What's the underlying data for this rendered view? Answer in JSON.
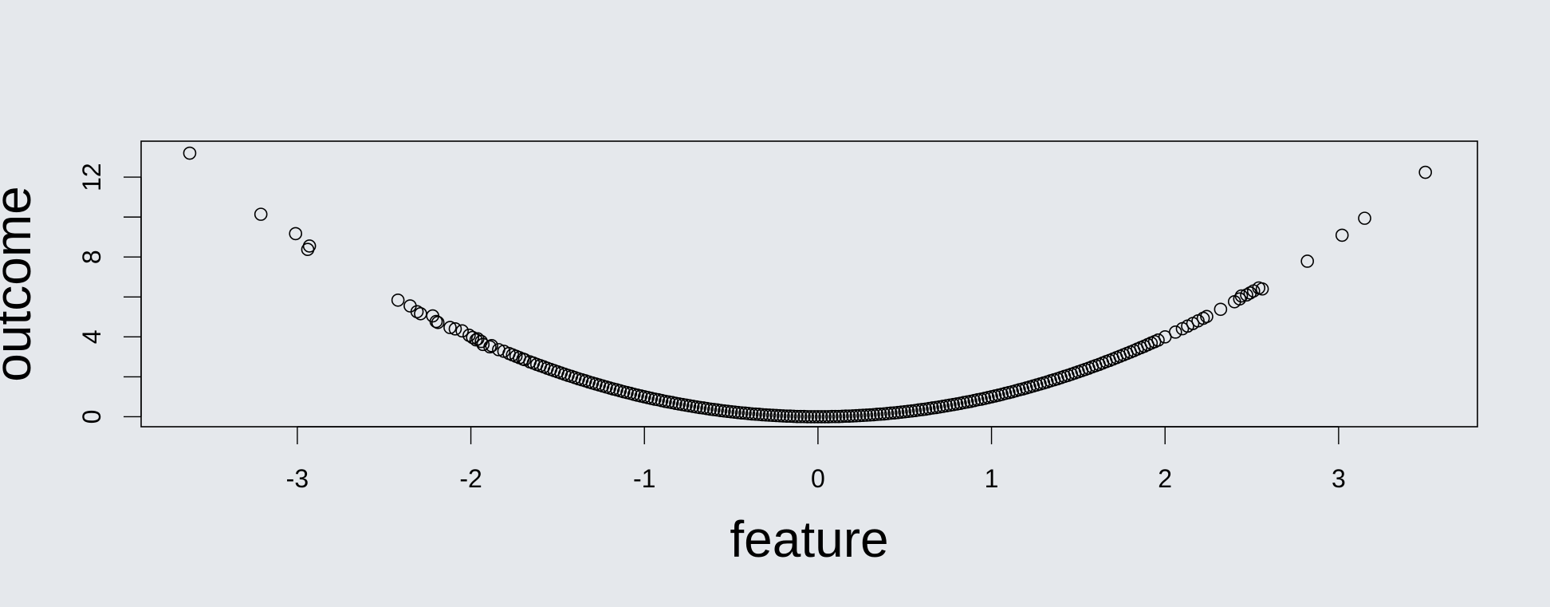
{
  "background_color": "#e5e8ec",
  "chart_data": {
    "type": "scatter",
    "title": "",
    "xlabel": "feature",
    "ylabel": "outcome",
    "xlim": [
      -3.9,
      3.8
    ],
    "ylim": [
      -0.5,
      13.8
    ],
    "x_ticks": [
      -3,
      -2,
      -1,
      0,
      1,
      2,
      3
    ],
    "x_tick_labels": [
      "-3",
      "-2",
      "-1",
      "0",
      "1",
      "2",
      "3"
    ],
    "y_ticks": [
      0,
      2,
      4,
      6,
      8,
      10,
      12
    ],
    "y_tick_labels": [
      "0",
      "",
      "4",
      "",
      "8",
      "",
      "12"
    ],
    "grid": false,
    "legend": "none",
    "marker": "open-circle",
    "marker_color": "#000000",
    "points": [
      [
        -3.62,
        13.2
      ],
      [
        -3.21,
        10.14
      ],
      [
        -3.01,
        9.17
      ],
      [
        -2.93,
        8.55
      ],
      [
        -2.94,
        8.38
      ],
      [
        -2.42,
        5.84
      ],
      [
        -2.35,
        5.55
      ],
      [
        -2.31,
        5.26
      ],
      [
        -2.29,
        5.16
      ],
      [
        -2.22,
        5.05
      ],
      [
        -2.2,
        4.77
      ],
      [
        -2.19,
        4.72
      ],
      [
        -2.12,
        4.47
      ],
      [
        -2.09,
        4.4
      ],
      [
        -2.05,
        4.3
      ],
      [
        -2.01,
        4.08
      ],
      [
        -1.99,
        3.97
      ],
      [
        -1.97,
        3.85
      ],
      [
        -1.96,
        3.9
      ],
      [
        -1.94,
        3.77
      ],
      [
        -1.93,
        3.62
      ],
      [
        -1.89,
        3.5
      ],
      [
        -1.88,
        3.56
      ],
      [
        -1.84,
        3.36
      ],
      [
        -1.81,
        3.28
      ],
      [
        -1.78,
        3.17
      ],
      [
        -1.76,
        3.1
      ],
      [
        -1.74,
        3.03
      ],
      [
        -1.72,
        2.96
      ],
      [
        -1.7,
        2.89
      ],
      [
        -1.69,
        2.86
      ],
      [
        -1.66,
        2.75
      ],
      [
        -1.64,
        2.69
      ],
      [
        -1.62,
        2.62
      ],
      [
        -1.6,
        2.56
      ],
      [
        -1.58,
        2.5
      ],
      [
        -1.56,
        2.43
      ],
      [
        -1.54,
        2.37
      ],
      [
        -1.52,
        2.31
      ],
      [
        -1.5,
        2.25
      ],
      [
        -1.48,
        2.19
      ],
      [
        -1.46,
        2.13
      ],
      [
        -1.44,
        2.07
      ],
      [
        -1.42,
        2.02
      ],
      [
        -1.4,
        1.96
      ],
      [
        -1.38,
        1.9
      ],
      [
        -1.36,
        1.85
      ],
      [
        -1.34,
        1.8
      ],
      [
        -1.32,
        1.74
      ],
      [
        -1.3,
        1.69
      ],
      [
        -1.28,
        1.64
      ],
      [
        -1.26,
        1.59
      ],
      [
        -1.24,
        1.54
      ],
      [
        -1.22,
        1.49
      ],
      [
        -1.2,
        1.44
      ],
      [
        -1.18,
        1.39
      ],
      [
        -1.16,
        1.35
      ],
      [
        -1.14,
        1.3
      ],
      [
        -1.12,
        1.25
      ],
      [
        -1.1,
        1.21
      ],
      [
        -1.08,
        1.17
      ],
      [
        -1.06,
        1.12
      ],
      [
        -1.04,
        1.08
      ],
      [
        -1.02,
        1.04
      ],
      [
        -1.0,
        1.0
      ],
      [
        -0.98,
        0.96
      ],
      [
        -0.96,
        0.92
      ],
      [
        -0.94,
        0.88
      ],
      [
        -0.92,
        0.85
      ],
      [
        -0.9,
        0.81
      ],
      [
        -0.88,
        0.77
      ],
      [
        -0.86,
        0.74
      ],
      [
        -0.84,
        0.71
      ],
      [
        -0.82,
        0.67
      ],
      [
        -0.8,
        0.64
      ],
      [
        -0.78,
        0.61
      ],
      [
        -0.76,
        0.58
      ],
      [
        -0.74,
        0.55
      ],
      [
        -0.72,
        0.52
      ],
      [
        -0.7,
        0.49
      ],
      [
        -0.68,
        0.46
      ],
      [
        -0.66,
        0.44
      ],
      [
        -0.64,
        0.41
      ],
      [
        -0.62,
        0.38
      ],
      [
        -0.6,
        0.36
      ],
      [
        -0.58,
        0.34
      ],
      [
        -0.56,
        0.31
      ],
      [
        -0.54,
        0.29
      ],
      [
        -0.52,
        0.27
      ],
      [
        -0.5,
        0.25
      ],
      [
        -0.48,
        0.23
      ],
      [
        -0.46,
        0.21
      ],
      [
        -0.44,
        0.19
      ],
      [
        -0.42,
        0.18
      ],
      [
        -0.4,
        0.16
      ],
      [
        -0.38,
        0.14
      ],
      [
        -0.36,
        0.13
      ],
      [
        -0.34,
        0.12
      ],
      [
        -0.32,
        0.1
      ],
      [
        -0.3,
        0.09
      ],
      [
        -0.28,
        0.08
      ],
      [
        -0.26,
        0.07
      ],
      [
        -0.24,
        0.06
      ],
      [
        -0.22,
        0.05
      ],
      [
        -0.2,
        0.04
      ],
      [
        -0.18,
        0.03
      ],
      [
        -0.16,
        0.03
      ],
      [
        -0.14,
        0.02
      ],
      [
        -0.12,
        0.01
      ],
      [
        -0.1,
        0.01
      ],
      [
        -0.08,
        0.01
      ],
      [
        -0.06,
        0.0
      ],
      [
        -0.04,
        0.0
      ],
      [
        -0.02,
        0.0
      ],
      [
        0.0,
        0.0
      ],
      [
        0.02,
        0.0
      ],
      [
        0.04,
        0.0
      ],
      [
        0.06,
        0.0
      ],
      [
        0.08,
        0.01
      ],
      [
        0.1,
        0.01
      ],
      [
        0.12,
        0.01
      ],
      [
        0.14,
        0.02
      ],
      [
        0.16,
        0.03
      ],
      [
        0.18,
        0.03
      ],
      [
        0.2,
        0.04
      ],
      [
        0.22,
        0.05
      ],
      [
        0.24,
        0.06
      ],
      [
        0.26,
        0.07
      ],
      [
        0.28,
        0.08
      ],
      [
        0.3,
        0.09
      ],
      [
        0.32,
        0.1
      ],
      [
        0.34,
        0.12
      ],
      [
        0.36,
        0.13
      ],
      [
        0.38,
        0.14
      ],
      [
        0.4,
        0.16
      ],
      [
        0.42,
        0.18
      ],
      [
        0.44,
        0.19
      ],
      [
        0.46,
        0.21
      ],
      [
        0.48,
        0.23
      ],
      [
        0.5,
        0.25
      ],
      [
        0.52,
        0.27
      ],
      [
        0.54,
        0.29
      ],
      [
        0.56,
        0.31
      ],
      [
        0.58,
        0.34
      ],
      [
        0.6,
        0.36
      ],
      [
        0.62,
        0.38
      ],
      [
        0.64,
        0.41
      ],
      [
        0.66,
        0.44
      ],
      [
        0.68,
        0.46
      ],
      [
        0.7,
        0.49
      ],
      [
        0.72,
        0.52
      ],
      [
        0.74,
        0.55
      ],
      [
        0.76,
        0.58
      ],
      [
        0.78,
        0.61
      ],
      [
        0.8,
        0.64
      ],
      [
        0.82,
        0.67
      ],
      [
        0.84,
        0.71
      ],
      [
        0.86,
        0.74
      ],
      [
        0.88,
        0.77
      ],
      [
        0.9,
        0.81
      ],
      [
        0.92,
        0.85
      ],
      [
        0.94,
        0.88
      ],
      [
        0.96,
        0.92
      ],
      [
        0.98,
        0.96
      ],
      [
        1.0,
        1.0
      ],
      [
        1.02,
        1.04
      ],
      [
        1.04,
        1.08
      ],
      [
        1.06,
        1.12
      ],
      [
        1.08,
        1.17
      ],
      [
        1.1,
        1.21
      ],
      [
        1.12,
        1.25
      ],
      [
        1.14,
        1.3
      ],
      [
        1.16,
        1.35
      ],
      [
        1.18,
        1.39
      ],
      [
        1.2,
        1.44
      ],
      [
        1.22,
        1.49
      ],
      [
        1.24,
        1.54
      ],
      [
        1.26,
        1.59
      ],
      [
        1.28,
        1.64
      ],
      [
        1.3,
        1.69
      ],
      [
        1.32,
        1.74
      ],
      [
        1.34,
        1.8
      ],
      [
        1.36,
        1.85
      ],
      [
        1.38,
        1.9
      ],
      [
        1.4,
        1.96
      ],
      [
        1.42,
        2.02
      ],
      [
        1.44,
        2.07
      ],
      [
        1.46,
        2.13
      ],
      [
        1.48,
        2.19
      ],
      [
        1.5,
        2.25
      ],
      [
        1.52,
        2.31
      ],
      [
        1.54,
        2.37
      ],
      [
        1.56,
        2.43
      ],
      [
        1.58,
        2.5
      ],
      [
        1.6,
        2.56
      ],
      [
        1.62,
        2.62
      ],
      [
        1.64,
        2.69
      ],
      [
        1.66,
        2.76
      ],
      [
        1.68,
        2.82
      ],
      [
        1.7,
        2.89
      ],
      [
        1.72,
        2.96
      ],
      [
        1.74,
        3.03
      ],
      [
        1.76,
        3.1
      ],
      [
        1.78,
        3.17
      ],
      [
        1.8,
        3.24
      ],
      [
        1.82,
        3.31
      ],
      [
        1.84,
        3.39
      ],
      [
        1.86,
        3.46
      ],
      [
        1.88,
        3.53
      ],
      [
        1.9,
        3.61
      ],
      [
        1.92,
        3.69
      ],
      [
        1.94,
        3.76
      ],
      [
        1.96,
        3.84
      ],
      [
        2.0,
        4.0
      ],
      [
        2.06,
        4.24
      ],
      [
        2.1,
        4.41
      ],
      [
        2.13,
        4.54
      ],
      [
        2.16,
        4.67
      ],
      [
        2.19,
        4.8
      ],
      [
        2.22,
        4.93
      ],
      [
        2.24,
        5.02
      ],
      [
        2.32,
        5.38
      ],
      [
        2.4,
        5.76
      ],
      [
        2.43,
        5.9
      ],
      [
        2.44,
        6.05
      ],
      [
        2.47,
        6.1
      ],
      [
        2.49,
        6.2
      ],
      [
        2.51,
        6.3
      ],
      [
        2.54,
        6.45
      ],
      [
        2.56,
        6.4
      ],
      [
        2.82,
        7.79
      ],
      [
        3.02,
        9.09
      ],
      [
        3.15,
        9.94
      ],
      [
        3.5,
        12.24
      ]
    ]
  }
}
